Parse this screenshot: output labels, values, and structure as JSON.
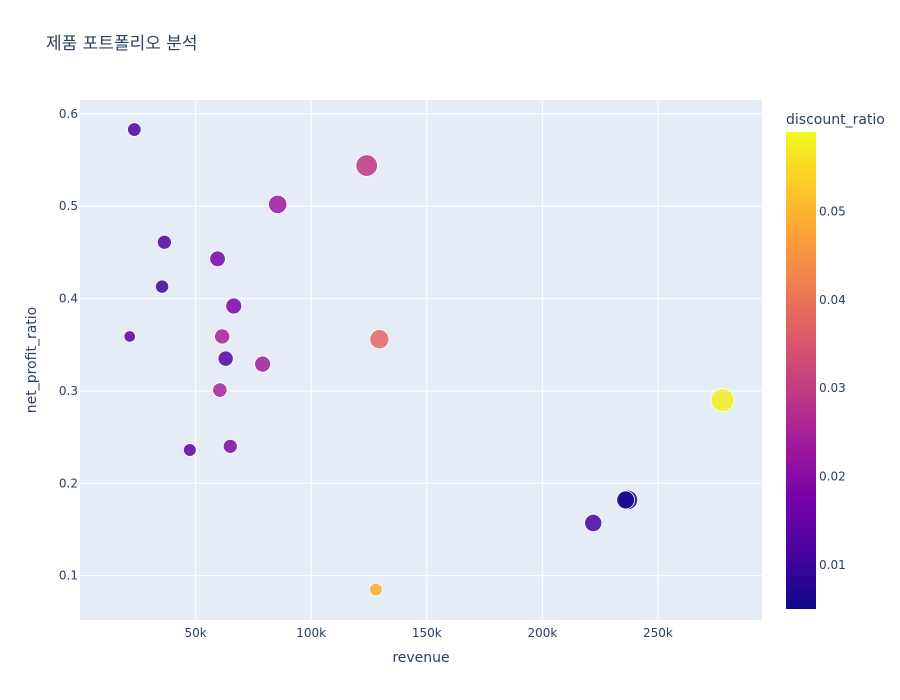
{
  "chart_data": {
    "type": "scatter",
    "title": "제품 포트폴리오 분석",
    "xlabel": "revenue",
    "ylabel": "net_profit_ratio",
    "xlim": [
      0,
      295000
    ],
    "ylim": [
      0.052,
      0.615
    ],
    "x_ticks": [
      50000,
      100000,
      150000,
      200000,
      250000
    ],
    "x_tick_labels": [
      "50k",
      "100k",
      "150k",
      "200k",
      "250k"
    ],
    "y_ticks": [
      0.1,
      0.2,
      0.3,
      0.4,
      0.5,
      0.6
    ],
    "y_tick_labels": [
      "0.1",
      "0.2",
      "0.3",
      "0.4",
      "0.5",
      "0.6"
    ],
    "grid": true,
    "colorbar": {
      "title": "discount_ratio",
      "range": [
        0.005,
        0.059
      ],
      "ticks": [
        0.01,
        0.02,
        0.03,
        0.04,
        0.05
      ],
      "tick_labels": [
        "0.01",
        "0.02",
        "0.03",
        "0.04",
        "0.05"
      ],
      "colorscale": [
        "#0d0887",
        "#46039f",
        "#7201a8",
        "#9c179e",
        "#bd3786",
        "#d8576b",
        "#ed7953",
        "#fb9f3a",
        "#fdca26",
        "#f0f921"
      ]
    },
    "points": [
      {
        "x": 23500,
        "y": 0.583,
        "color": 0.013,
        "size": 0.35
      },
      {
        "x": 124000,
        "y": 0.544,
        "color": 0.029,
        "size": 0.85
      },
      {
        "x": 85500,
        "y": 0.502,
        "color": 0.023,
        "size": 0.65
      },
      {
        "x": 36500,
        "y": 0.461,
        "color": 0.012,
        "size": 0.38
      },
      {
        "x": 59500,
        "y": 0.443,
        "color": 0.018,
        "size": 0.48
      },
      {
        "x": 35500,
        "y": 0.413,
        "color": 0.01,
        "size": 0.33
      },
      {
        "x": 66500,
        "y": 0.392,
        "color": 0.018,
        "size": 0.5
      },
      {
        "x": 21500,
        "y": 0.359,
        "color": 0.014,
        "size": 0.22
      },
      {
        "x": 61500,
        "y": 0.359,
        "color": 0.025,
        "size": 0.45
      },
      {
        "x": 129500,
        "y": 0.356,
        "color": 0.038,
        "size": 0.7
      },
      {
        "x": 63000,
        "y": 0.335,
        "color": 0.013,
        "size": 0.45
      },
      {
        "x": 79000,
        "y": 0.329,
        "color": 0.024,
        "size": 0.5
      },
      {
        "x": 60500,
        "y": 0.301,
        "color": 0.025,
        "size": 0.4
      },
      {
        "x": 278000,
        "y": 0.29,
        "color": 0.058,
        "size": 0.95
      },
      {
        "x": 65000,
        "y": 0.24,
        "color": 0.019,
        "size": 0.38
      },
      {
        "x": 47500,
        "y": 0.236,
        "color": 0.014,
        "size": 0.3
      },
      {
        "x": 237000,
        "y": 0.182,
        "color": 0.007,
        "size": 0.72
      },
      {
        "x": 236000,
        "y": 0.182,
        "color": 0.006,
        "size": 0.62
      },
      {
        "x": 222000,
        "y": 0.157,
        "color": 0.011,
        "size": 0.58
      },
      {
        "x": 128000,
        "y": 0.085,
        "color": 0.049,
        "size": 0.3
      }
    ]
  }
}
